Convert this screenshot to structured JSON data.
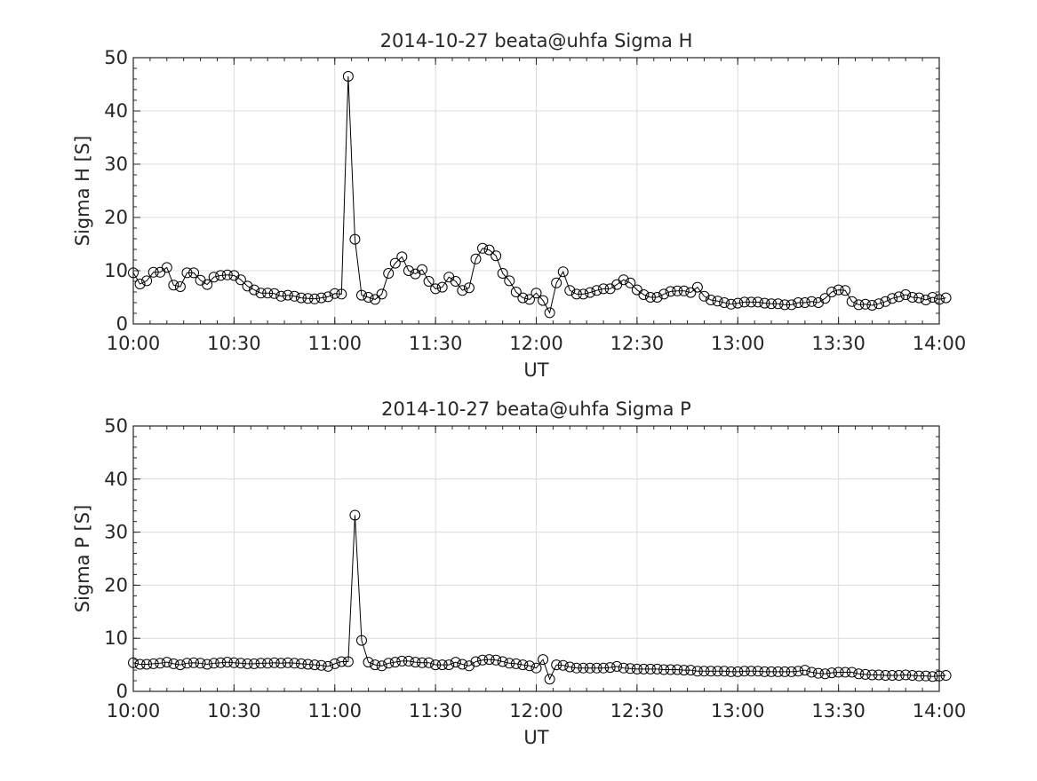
{
  "chart_data": [
    {
      "type": "line",
      "title": "2014-10-27  beata@uhfa Sigma H",
      "xlabel": "UT",
      "ylabel": "Sigma H [S]",
      "xlim": [
        "10:00",
        "14:00"
      ],
      "ylim": [
        0,
        50
      ],
      "x_ticks": [
        "10:00",
        "10:30",
        "11:00",
        "11:30",
        "12:00",
        "12:30",
        "13:00",
        "13:30",
        "14:00"
      ],
      "y_ticks": [
        "0",
        "10",
        "20",
        "30",
        "40",
        "50"
      ],
      "grid": true,
      "marker": "open-circle",
      "line_color": "#000000",
      "x_start": "10:00",
      "x_step_minutes": 2,
      "values": [
        9.6,
        7.5,
        8.1,
        9.7,
        9.7,
        10.6,
        7.3,
        7.0,
        9.6,
        9.6,
        8.2,
        7.4,
        8.8,
        9.1,
        9.2,
        9.1,
        8.3,
        7.1,
        6.4,
        5.8,
        5.8,
        5.7,
        5.2,
        5.4,
        5.2,
        4.9,
        4.8,
        4.7,
        4.9,
        5.1,
        5.7,
        5.6,
        46.5,
        15.9,
        5.4,
        5.0,
        4.6,
        5.6,
        9.5,
        11.4,
        12.6,
        10.0,
        9.4,
        10.2,
        8.0,
        6.6,
        6.9,
        8.8,
        8.0,
        6.3,
        6.8,
        12.2,
        14.2,
        13.9,
        12.8,
        9.5,
        8.1,
        6.0,
        4.9,
        4.6,
        5.8,
        4.4,
        2.1,
        7.7,
        9.8,
        6.3,
        5.6,
        5.6,
        5.9,
        6.3,
        6.6,
        6.6,
        7.4,
        8.3,
        7.7,
        6.4,
        5.5,
        5.0,
        5.0,
        5.6,
        6.1,
        6.2,
        6.2,
        5.9,
        6.9,
        5.2,
        4.5,
        4.3,
        4.0,
        3.7,
        3.9,
        4.1,
        4.1,
        4.1,
        3.9,
        3.8,
        3.8,
        3.6,
        3.6,
        4.0,
        4.0,
        4.2,
        4.0,
        4.8,
        6.0,
        6.4,
        6.3,
        4.2,
        3.6,
        3.7,
        3.5,
        3.8,
        4.2,
        4.8,
        5.1,
        5.5,
        5.0,
        4.9,
        4.5,
        5.0,
        4.6,
        4.9
      ]
    },
    {
      "type": "line",
      "title": "2014-10-27  beata@uhfa Sigma P",
      "xlabel": "UT",
      "ylabel": "Sigma P [S]",
      "xlim": [
        "10:00",
        "14:00"
      ],
      "ylim": [
        0,
        50
      ],
      "x_ticks": [
        "10:00",
        "10:30",
        "11:00",
        "11:30",
        "12:00",
        "12:30",
        "13:00",
        "13:30",
        "14:00"
      ],
      "y_ticks": [
        "0",
        "10",
        "20",
        "30",
        "40",
        "50"
      ],
      "grid": true,
      "marker": "open-circle",
      "line_color": "#000000",
      "x_start": "10:00",
      "x_step_minutes": 2,
      "values": [
        5.4,
        5.1,
        5.1,
        5.2,
        5.3,
        5.5,
        5.2,
        5.0,
        5.3,
        5.4,
        5.3,
        5.1,
        5.3,
        5.4,
        5.5,
        5.4,
        5.3,
        5.2,
        5.2,
        5.3,
        5.3,
        5.4,
        5.3,
        5.4,
        5.3,
        5.2,
        5.1,
        5.0,
        4.9,
        4.7,
        5.2,
        5.6,
        5.6,
        33.2,
        9.6,
        5.5,
        5.0,
        4.8,
        5.3,
        5.5,
        5.7,
        5.7,
        5.5,
        5.4,
        5.4,
        5.0,
        5.0,
        5.0,
        5.5,
        5.1,
        4.8,
        5.6,
        5.9,
        6.0,
        5.9,
        5.6,
        5.3,
        5.2,
        5.0,
        4.8,
        4.4,
        6.0,
        2.3,
        5.0,
        4.9,
        4.6,
        4.4,
        4.4,
        4.4,
        4.4,
        4.4,
        4.5,
        4.7,
        4.4,
        4.3,
        4.2,
        4.2,
        4.2,
        4.2,
        4.1,
        4.1,
        4.1,
        4.0,
        4.0,
        3.8,
        3.8,
        3.8,
        3.8,
        3.8,
        3.7,
        3.7,
        3.8,
        3.8,
        3.8,
        3.7,
        3.7,
        3.7,
        3.7,
        3.7,
        3.8,
        4.0,
        3.6,
        3.4,
        3.3,
        3.5,
        3.6,
        3.6,
        3.6,
        3.3,
        3.2,
        3.1,
        3.1,
        3.0,
        3.0,
        3.0,
        3.1,
        3.0,
        2.9,
        2.9,
        2.8,
        2.9,
        3.0
      ]
    }
  ]
}
